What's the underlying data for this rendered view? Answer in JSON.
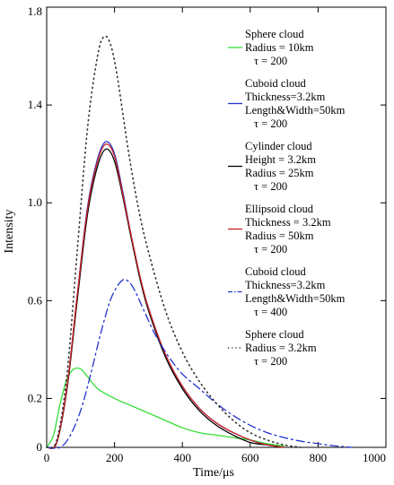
{
  "chart_data": {
    "type": "line",
    "xlabel": "Time/μs",
    "ylabel": "Intensity",
    "xlim": [
      0,
      1000
    ],
    "ylim": [
      0,
      1.8
    ],
    "x_ticks": [
      0,
      200,
      400,
      600,
      800,
      1000
    ],
    "y_ticks": [
      0,
      0.2,
      0.6,
      1.0,
      1.4,
      1.8
    ],
    "grid": false,
    "legend_position": "right",
    "series": [
      {
        "name": "Sphere cloud / Radius = 10km / τ = 200",
        "legend_lines": [
          "Sphere cloud",
          "Radius = 10km",
          "τ = 200"
        ],
        "color": "#33dd33",
        "dash": "solid",
        "x": [
          0,
          20,
          40,
          60,
          80,
          100,
          120,
          150,
          200,
          250,
          300,
          350,
          400,
          450,
          500,
          550,
          600,
          650,
          700
        ],
        "y": [
          0.0,
          0.05,
          0.18,
          0.28,
          0.32,
          0.32,
          0.29,
          0.24,
          0.2,
          0.17,
          0.14,
          0.11,
          0.08,
          0.06,
          0.05,
          0.04,
          0.03,
          0.015,
          0.005
        ]
      },
      {
        "name": "Cuboid cloud / Thickness=3.2km / Length&Width=50km / τ = 200",
        "legend_lines": [
          "Cuboid cloud",
          "Thickness=3.2km",
          "Length&Width=50km",
          "τ = 200"
        ],
        "color": "#2233cc",
        "dash": "solid",
        "x": [
          0,
          30,
          60,
          90,
          120,
          150,
          175,
          200,
          225,
          250,
          275,
          300,
          350,
          400,
          450,
          500,
          550,
          600,
          650,
          700
        ],
        "y": [
          0.0,
          0.02,
          0.25,
          0.62,
          0.98,
          1.18,
          1.25,
          1.2,
          1.04,
          0.86,
          0.7,
          0.57,
          0.38,
          0.25,
          0.16,
          0.1,
          0.06,
          0.03,
          0.01,
          0.0
        ]
      },
      {
        "name": "Cylinder cloud / Height = 3.2km / Radius = 25km / τ = 200",
        "legend_lines": [
          "Cylinder cloud",
          "Height = 3.2km",
          "Radius = 25km",
          "τ = 200"
        ],
        "color": "#000000",
        "dash": "solid",
        "x": [
          0,
          30,
          60,
          90,
          120,
          150,
          175,
          200,
          225,
          250,
          275,
          300,
          350,
          400,
          450,
          500,
          550,
          600,
          650,
          700
        ],
        "y": [
          0.0,
          0.02,
          0.24,
          0.6,
          0.95,
          1.15,
          1.22,
          1.17,
          1.02,
          0.85,
          0.69,
          0.56,
          0.37,
          0.24,
          0.15,
          0.09,
          0.05,
          0.02,
          0.01,
          0.0
        ]
      },
      {
        "name": "Ellipsoid cloud / Thickness = 3.2km / Radius = 50km / τ = 200",
        "legend_lines": [
          "Ellipsoid cloud",
          "Thickness = 3.2km",
          "Radius = 50km",
          "τ = 200"
        ],
        "color": "#cc2222",
        "dash": "solid",
        "x": [
          0,
          30,
          60,
          90,
          120,
          150,
          175,
          200,
          225,
          250,
          275,
          300,
          350,
          400,
          450,
          500,
          550,
          600,
          650,
          700
        ],
        "y": [
          0.0,
          0.02,
          0.25,
          0.62,
          0.97,
          1.17,
          1.24,
          1.19,
          1.03,
          0.86,
          0.7,
          0.57,
          0.38,
          0.25,
          0.16,
          0.1,
          0.06,
          0.03,
          0.01,
          0.0
        ]
      },
      {
        "name": "Cuboid cloud / Thickness=3.2km / Length&Width=50km / τ = 400",
        "legend_lines": [
          "Cuboid cloud",
          "Thickness=3.2km",
          "Length&Width=50km",
          "τ = 400"
        ],
        "color": "#2233cc",
        "dash": "dashdot",
        "x": [
          0,
          40,
          70,
          100,
          130,
          160,
          190,
          220,
          240,
          260,
          290,
          320,
          360,
          400,
          450,
          500,
          550,
          600,
          650,
          700,
          750,
          800,
          850,
          900
        ],
        "y": [
          0.0,
          0.0,
          0.05,
          0.15,
          0.3,
          0.47,
          0.61,
          0.68,
          0.68,
          0.64,
          0.55,
          0.46,
          0.37,
          0.3,
          0.24,
          0.18,
          0.13,
          0.09,
          0.06,
          0.04,
          0.025,
          0.015,
          0.006,
          0.0
        ]
      },
      {
        "name": "Sphere cloud / Radius = 3.2km / τ = 200",
        "legend_lines": [
          "Sphere cloud",
          "Radius = 3.2km",
          "τ = 200"
        ],
        "color": "#333333",
        "dash": "dotted",
        "x": [
          0,
          30,
          60,
          90,
          120,
          150,
          170,
          190,
          210,
          240,
          270,
          300,
          350,
          400,
          450,
          500,
          550,
          600,
          650,
          700,
          750
        ],
        "y": [
          0.0,
          0.03,
          0.3,
          0.8,
          1.3,
          1.6,
          1.68,
          1.64,
          1.5,
          1.22,
          0.98,
          0.8,
          0.56,
          0.39,
          0.27,
          0.18,
          0.11,
          0.06,
          0.03,
          0.01,
          0.0
        ]
      }
    ]
  }
}
